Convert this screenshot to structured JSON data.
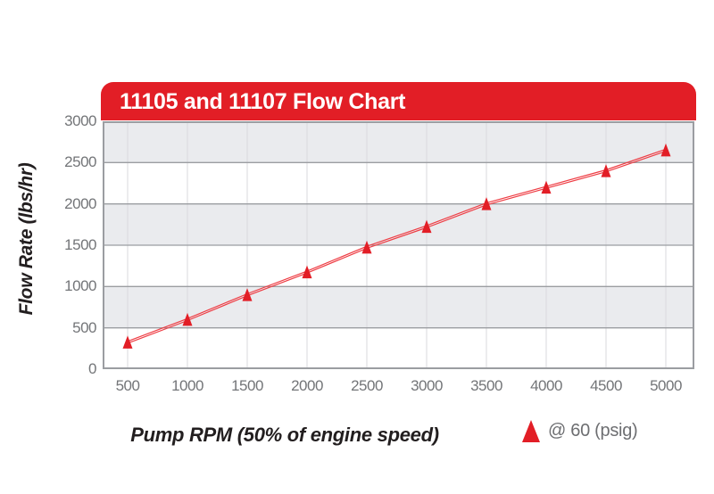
{
  "page_title": "11105 and 11107 Flow Chart",
  "colors": {
    "banner_red": "#e21e26",
    "marker_red": "#e21e26",
    "line_red": "#ee3d44",
    "band_gray": "#eaebee",
    "grid_gray": "#9b9da1",
    "vgrid_gray": "#d9dade",
    "tick_text": "#737578",
    "axis_title_text": "#221e1f",
    "legend_text": "#6d6e71",
    "title_text": "#ffffff"
  },
  "chart_data": {
    "type": "line",
    "title": "11105 and 11107 Flow Chart",
    "xlabel": "Pump RPM (50% of engine speed)",
    "ylabel": "Flow Rate (lbs/hr)",
    "x": [
      500,
      1000,
      1500,
      2000,
      2500,
      3000,
      3500,
      4000,
      4500,
      5000
    ],
    "series": [
      {
        "name": "@ 60 (psig)",
        "marker": "triangle-up",
        "values": [
          325,
          600,
          900,
          1175,
          1475,
          1725,
          2000,
          2200,
          2400,
          2650
        ]
      }
    ],
    "xticks": [
      500,
      1000,
      1500,
      2000,
      2500,
      3000,
      3500,
      4000,
      4500,
      5000
    ],
    "yticks": [
      0,
      500,
      1000,
      1500,
      2000,
      2500,
      3000
    ],
    "xlim": [
      500,
      5000
    ],
    "ylim": [
      0,
      3000
    ],
    "grid": "horizontal-major, faint-vertical, alternating-row-shading",
    "legend_position": "below-right",
    "legend": {
      "label": "@ 60 (psig)"
    }
  }
}
